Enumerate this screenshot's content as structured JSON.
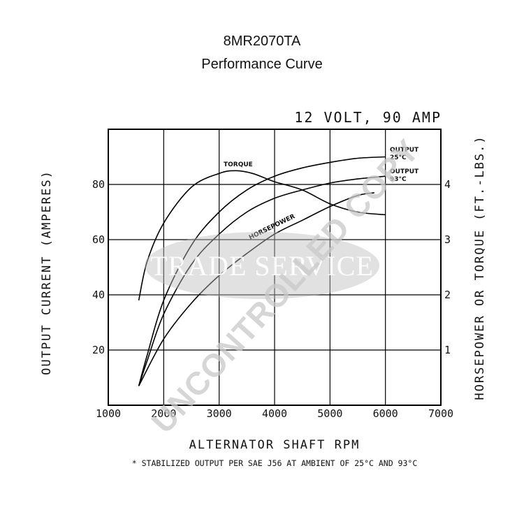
{
  "chart_data": {
    "type": "line",
    "title": "8MR2070TA",
    "subtitle": "Performance Curve",
    "rating_label": "12 VOLT, 90 AMP",
    "xlabel": "ALTERNATOR SHAFT RPM",
    "ylabel": "OUTPUT CURRENT (AMPERES)",
    "y2label": "HORSEPOWER OR TORQUE (FT.-LBS.)",
    "xlim": [
      1000,
      7000
    ],
    "ylim": [
      0,
      100
    ],
    "y2lim": [
      0,
      5
    ],
    "x_ticks": [
      "1000",
      "2000",
      "3000",
      "4000",
      "5000",
      "6000",
      "7000"
    ],
    "y_ticks": [
      "20",
      "40",
      "60",
      "80"
    ],
    "y2_ticks": [
      "1",
      "2",
      "3",
      "4"
    ],
    "grid": true,
    "footnote": "* STABILIZED OUTPUT PER SAE J56 AT AMBIENT OF 25°C AND 93°C",
    "series": [
      {
        "name": "OUTPUT 25°C",
        "axis": "left",
        "x": [
          1550,
          1700,
          2000,
          2500,
          3000,
          3500,
          4000,
          4500,
          5000,
          5500,
          6000
        ],
        "y": [
          7,
          18,
          38,
          58,
          70,
          78,
          83,
          86,
          88,
          89.5,
          90
        ]
      },
      {
        "name": "OUTPUT 93°C",
        "axis": "left",
        "x": [
          1550,
          1700,
          2000,
          2500,
          3000,
          3500,
          4000,
          4500,
          5000,
          5500,
          6000
        ],
        "y": [
          7,
          16,
          33,
          51,
          62,
          70,
          75,
          78,
          80.5,
          82,
          83
        ]
      },
      {
        "name": "TORQUE",
        "axis": "right",
        "x": [
          1550,
          1700,
          2000,
          2500,
          3000,
          3300,
          3600,
          4000,
          4500,
          5000,
          5500,
          6000
        ],
        "y": [
          1.9,
          2.6,
          3.3,
          3.95,
          4.2,
          4.25,
          4.2,
          4.05,
          3.9,
          3.65,
          3.5,
          3.45
        ]
      },
      {
        "name": "HORSEPOWER",
        "axis": "right",
        "x": [
          1550,
          2000,
          2500,
          3000,
          3500,
          4000,
          4500,
          5000,
          5500,
          5800
        ],
        "y": [
          0.35,
          1.2,
          1.85,
          2.35,
          2.75,
          3.1,
          3.35,
          3.6,
          3.8,
          3.85
        ]
      }
    ],
    "curve_labels": {
      "torque": "TORQUE",
      "horsepower": "HORSEPOWER",
      "out25_line1": "OUTPUT",
      "out25_line2": "25°C",
      "out93_line1": "OUTPUT",
      "out93_line2": "93°C"
    }
  },
  "watermark": {
    "uncontrolled": "UNCONTROLLED COPY",
    "trade_service": "TRADE SERVICE"
  }
}
